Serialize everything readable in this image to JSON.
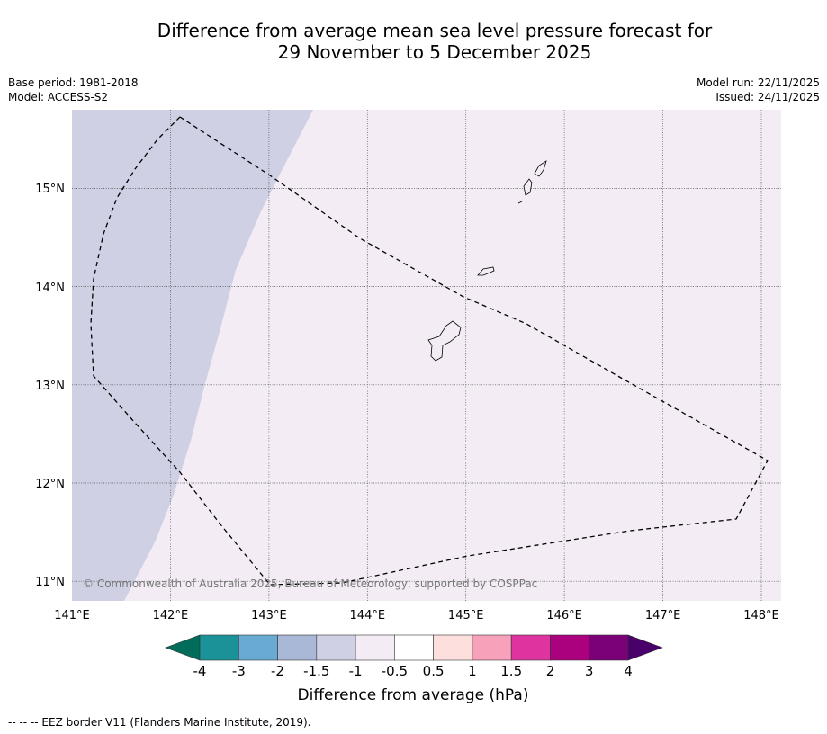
{
  "title": {
    "line1": "Difference from average mean sea level pressure forecast for",
    "line2": "29 November to 5 December 2025"
  },
  "info_left": {
    "base_period": "Base period: 1981-2018",
    "model": "Model: ACCESS-S2"
  },
  "info_right": {
    "model_run": "Model run: 22/11/2025",
    "issued": "Issued: 24/11/2025"
  },
  "map": {
    "lon_range": [
      141,
      148.2
    ],
    "lat_range": [
      10.8,
      15.8
    ],
    "lon_ticks": [
      "141°E",
      "142°E",
      "143°E",
      "144°E",
      "145°E",
      "146°E",
      "147°E",
      "148°E"
    ],
    "lat_ticks": [
      "11°N",
      "12°N",
      "13°N",
      "14°N",
      "15°N"
    ],
    "copyright": "© Commonwealth of Australia 2025, Bureau of Meteorology, supported by COSPPac",
    "anomaly_fill_color": "#f3ecf5",
    "negative_region_color": "#cfd0e4"
  },
  "colorbar": {
    "labels": [
      "-4",
      "-3",
      "-2",
      "-1.5",
      "-1",
      "-0.5",
      "0.5",
      "1",
      "1.5",
      "2",
      "3",
      "4"
    ],
    "colors": [
      "#1b9297",
      "#69aad2",
      "#a8b8d6",
      "#cfd0e4",
      "#f3ecf5",
      "#ffffff",
      "#fde0dd",
      "#f8a1bb",
      "#dd34a0",
      "#ac017e",
      "#7a0177"
    ],
    "low_extend_color": "#016c59",
    "high_extend_color": "#49006a",
    "title": "Difference from average (hPa)"
  },
  "footnote": "--  --  -- EEZ border V11 (Flanders Marine Institute, 2019)."
}
